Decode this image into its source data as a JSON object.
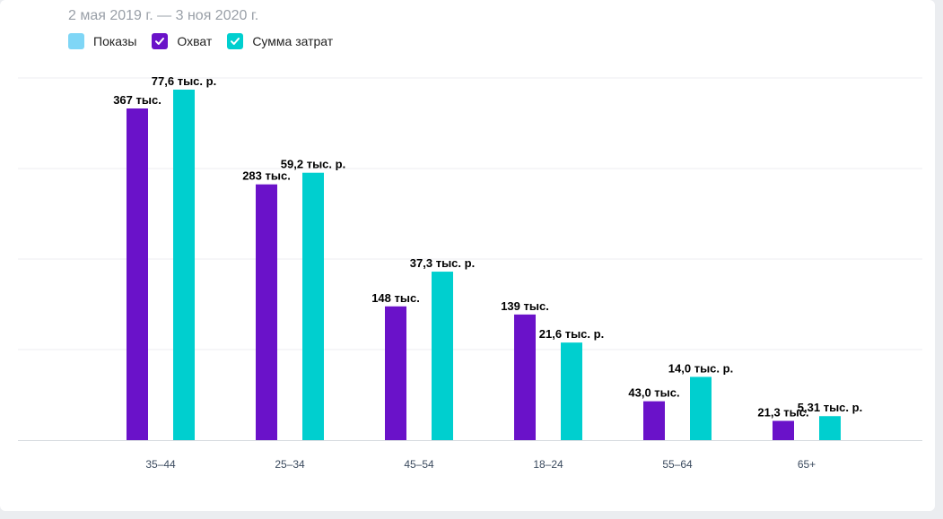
{
  "date_range": "2 мая 2019 г. — 3 ноя 2020 г.",
  "legend": [
    {
      "label": "Показы",
      "color": "#7fd6f6",
      "checked": false
    },
    {
      "label": "Охват",
      "color": "#6a12c9",
      "checked": true
    },
    {
      "label": "Сумма затрат",
      "color": "#00cfcf",
      "checked": true
    }
  ],
  "chart_data": {
    "type": "bar",
    "categories": [
      "35–44",
      "25–34",
      "45–54",
      "18–24",
      "55–64",
      "65+"
    ],
    "series": [
      {
        "name": "Охват",
        "color": "#6a12c9",
        "values": [
          367000,
          283000,
          148000,
          139000,
          43000,
          21300
        ],
        "labels": [
          "367 тыс.",
          "283 тыс.",
          "148 тыс.",
          "139 тыс.",
          "43,0 тыс.",
          "21,3 тыс."
        ]
      },
      {
        "name": "Сумма затрат",
        "color": "#00cfcf",
        "values": [
          77600,
          59200,
          37300,
          21600,
          14000,
          5310
        ],
        "labels": [
          "77,6 тыс. р.",
          "59,2 тыс. р.",
          "37,3 тыс. р.",
          "21,6 тыс. р.",
          "14,0 тыс. р.",
          "5,31 тыс. р."
        ]
      }
    ],
    "grid": true,
    "legend_position": "top-left"
  }
}
